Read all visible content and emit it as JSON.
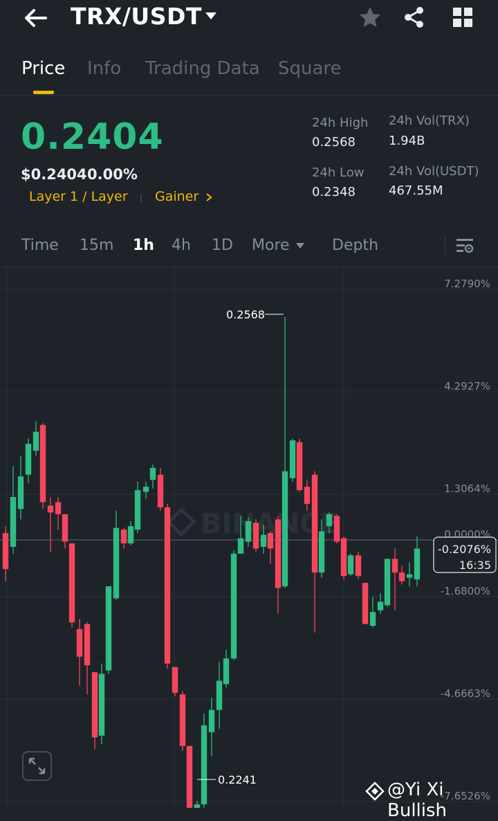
{
  "header": {
    "pair": "TRX/USDT",
    "icons": [
      "back-arrow-icon",
      "caret-down-icon",
      "star-icon",
      "share-icon",
      "grid-icon"
    ]
  },
  "tabs": [
    {
      "label": "Price",
      "active": true
    },
    {
      "label": "Info",
      "active": false
    },
    {
      "label": "Trading Data",
      "active": false
    },
    {
      "label": "Square",
      "active": false
    }
  ],
  "ticker": {
    "price": "0.2404",
    "usd_price": "$0.2404",
    "change": "0.00%",
    "tag_layer": "Layer 1 / Layer",
    "tag_gainer": "Gainer",
    "high_label": "24h High",
    "high_value": "0.2568",
    "low_label": "24h Low",
    "low_value": "0.2348",
    "vol_trx_label": "24h Vol(TRX)",
    "vol_trx_value": "1.94B",
    "vol_usdt_label": "24h Vol(USDT)",
    "vol_usdt_value": "467.55M"
  },
  "timeframes": [
    {
      "label": "Time",
      "active": false
    },
    {
      "label": "15m",
      "active": false
    },
    {
      "label": "1h",
      "active": true
    },
    {
      "label": "4h",
      "active": false
    },
    {
      "label": "1D",
      "active": false
    },
    {
      "label": "More",
      "active": false
    },
    {
      "label": "Depth",
      "active": false
    }
  ],
  "chart": {
    "axis_labels": [
      "7.2790%",
      "4.2927%",
      "1.3064%",
      "0.0000%",
      "-1.6800%",
      "-4.6663%",
      "-7.6526%"
    ],
    "current_change": "-0.2076%",
    "countdown": "16:35",
    "high_marker": "0.2568",
    "low_marker": "0.2241",
    "brand_watermark": "BINANCE",
    "colors": {
      "up": "#2ebd85",
      "down": "#f6465d",
      "grid": "#2b3139",
      "axis_text": "#848e9c"
    }
  },
  "watermark": "@Yi Xi Bullish"
}
